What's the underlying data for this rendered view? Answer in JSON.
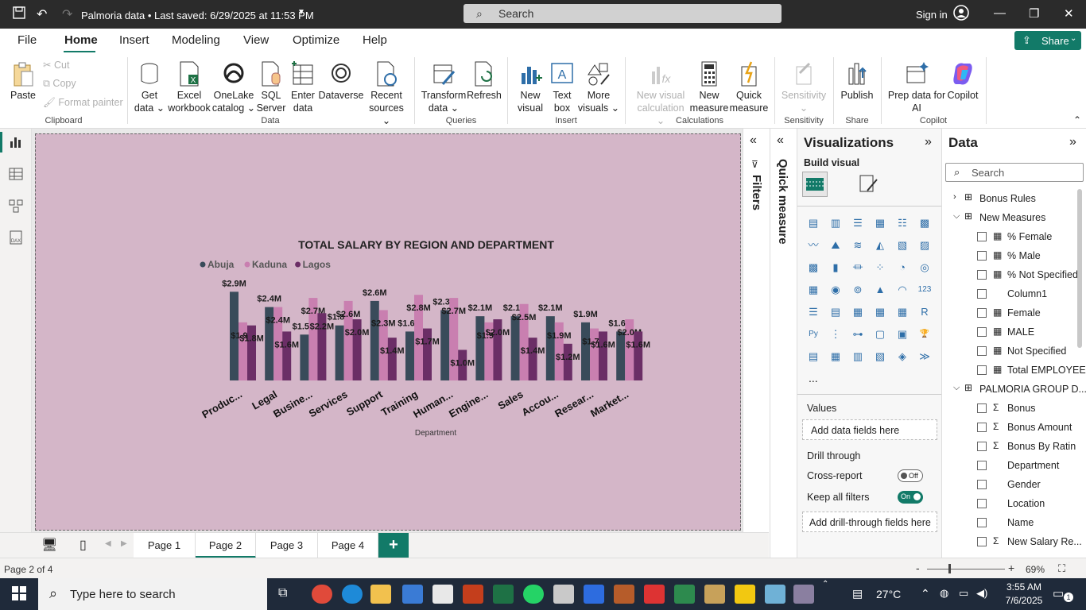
{
  "titlebar": {
    "title": "Palmoria data • Last saved: 6/29/2025 at 11:53 PM",
    "search_placeholder": "Search",
    "signin": "Sign in"
  },
  "menubar": {
    "items": [
      "File",
      "Home",
      "Insert",
      "Modeling",
      "View",
      "Optimize",
      "Help"
    ],
    "active": "Home",
    "share": "Share"
  },
  "ribbon": {
    "clipboard": {
      "paste": "Paste",
      "cut": "Cut",
      "copy": "Copy",
      "format_painter": "Format painter",
      "group": "Clipboard"
    },
    "data": {
      "get_data": [
        "Get",
        "data ⌄"
      ],
      "excel": [
        "Excel",
        "workbook"
      ],
      "onelake": [
        "OneLake",
        "catalog ⌄"
      ],
      "sql": [
        "SQL",
        "Server"
      ],
      "enter": [
        "Enter",
        "data"
      ],
      "dataverse": "Dataverse",
      "recent": [
        "Recent",
        "sources ⌄"
      ],
      "group": "Data"
    },
    "queries": {
      "transform": [
        "Transform",
        "data ⌄"
      ],
      "refresh": "Refresh",
      "group": "Queries"
    },
    "insert": {
      "new_visual": [
        "New",
        "visual"
      ],
      "text_box": [
        "Text",
        "box"
      ],
      "more_visuals": [
        "More",
        "visuals ⌄"
      ],
      "group": "Insert"
    },
    "calculations": {
      "new_visual_calc": [
        "New visual",
        "calculation ⌄"
      ],
      "new_measure": [
        "New",
        "measure"
      ],
      "quick_measure": [
        "Quick",
        "measure"
      ],
      "group": "Calculations"
    },
    "sensitivity": {
      "label": "Sensitivity",
      "group": "Sensitivity"
    },
    "share": {
      "publish": "Publish",
      "group": "Share"
    },
    "copilot": {
      "prep": [
        "Prep data for",
        "AI"
      ],
      "copilot": "Copilot",
      "group": "Copilot"
    }
  },
  "chart_data": {
    "type": "bar",
    "title": "TOTAL SALARY BY REGION AND DEPARTMENT",
    "xlabel": "Department",
    "ylabel": "",
    "legend_position": "top-left",
    "categories": [
      "Produc...",
      "Legal",
      "Busine...",
      "Services",
      "Support",
      "Training",
      "Human...",
      "Engine...",
      "Sales",
      "Accou...",
      "Resear...",
      "Market..."
    ],
    "series": [
      {
        "name": "Abuja",
        "color": "#394b5a",
        "values": [
          2.9,
          2.4,
          1.5,
          1.8,
          2.6,
          1.6,
          2.3,
          2.1,
          2.1,
          2.1,
          1.9,
          1.6
        ],
        "labels": [
          "$2.9M",
          "$2.4M",
          "$1.5M",
          "$1.8M",
          "$2.6M",
          "$1.6M",
          "$2.3M",
          "$2.1M",
          "$2.1M",
          "$2.1M",
          "$1.9M",
          "$1.6M"
        ]
      },
      {
        "name": "Kaduna",
        "color": "#c97fb0",
        "values": [
          1.9,
          2.4,
          2.7,
          2.6,
          2.3,
          2.8,
          2.7,
          1.9,
          2.5,
          1.9,
          1.7,
          2.0
        ],
        "labels": [
          "$1.9M",
          "$2.4M",
          "$2.7M",
          "$2.6M",
          "$2.3M",
          "$2.8M",
          "$2.7M",
          "$1.9M",
          "$2.5M",
          "$1.9M",
          "$1.7M",
          "$2.0M"
        ]
      },
      {
        "name": "Lagos",
        "color": "#6b2e66",
        "values": [
          1.8,
          1.6,
          2.2,
          2.0,
          1.4,
          1.7,
          1.0,
          2.0,
          1.4,
          1.2,
          1.6,
          1.6
        ],
        "labels": [
          "$1.8M",
          "$1.6M",
          "$2.2M",
          "$2.0M",
          "$1.4M",
          "$1.7M",
          "$1.0M",
          "$2.0M",
          "$1.4M",
          "$1.2M",
          "$1.6M",
          "$1.6M"
        ]
      }
    ]
  },
  "filters": {
    "label": "Filters"
  },
  "quick_measure": {
    "label": "Quick measure"
  },
  "visualizations": {
    "title": "Visualizations",
    "build_visual": "Build visual",
    "values_label": "Values",
    "values_placeholder": "Add data fields here",
    "drill_through": "Drill through",
    "cross_report": "Cross-report",
    "cross_report_state": "Off",
    "keep_all_filters": "Keep all filters",
    "keep_all_filters_state": "On",
    "drill_placeholder": "Add drill-through fields here",
    "more": "..."
  },
  "data_pane": {
    "title": "Data",
    "search_placeholder": "Search",
    "fields": [
      {
        "label": "Bonus Rules",
        "kind": "table",
        "expanded": false
      },
      {
        "label": "New Measures",
        "kind": "table",
        "expanded": true
      },
      {
        "label": "% Female",
        "kind": "measure"
      },
      {
        "label": "% Male",
        "kind": "measure"
      },
      {
        "label": "% Not Specified",
        "kind": "measure"
      },
      {
        "label": "Column1",
        "kind": "column"
      },
      {
        "label": "Female",
        "kind": "measure"
      },
      {
        "label": "MALE",
        "kind": "measure"
      },
      {
        "label": "Not Specified",
        "kind": "measure"
      },
      {
        "label": "Total EMPLOYEE",
        "kind": "measure"
      },
      {
        "label": "PALMORIA GROUP D...",
        "kind": "table",
        "expanded": true
      },
      {
        "label": "Bonus",
        "kind": "sum"
      },
      {
        "label": "Bonus Amount",
        "kind": "sum"
      },
      {
        "label": "Bonus By Ratin",
        "kind": "sum"
      },
      {
        "label": "Department",
        "kind": "column"
      },
      {
        "label": "Gender",
        "kind": "column"
      },
      {
        "label": "Location",
        "kind": "column"
      },
      {
        "label": "Name",
        "kind": "column"
      },
      {
        "label": "New Salary Re...",
        "kind": "sum"
      }
    ]
  },
  "pages": {
    "tabs": [
      "Page 1",
      "Page 2",
      "Page 3",
      "Page 4"
    ],
    "active": "Page 2",
    "add": "+"
  },
  "status": {
    "page_info": "Page 2 of 4",
    "zoom": "69%"
  },
  "taskbar": {
    "search_placeholder": "Type here to search",
    "weather": "27°C",
    "time": "3:55 AM",
    "date": "7/6/2025",
    "notifications": "1"
  }
}
